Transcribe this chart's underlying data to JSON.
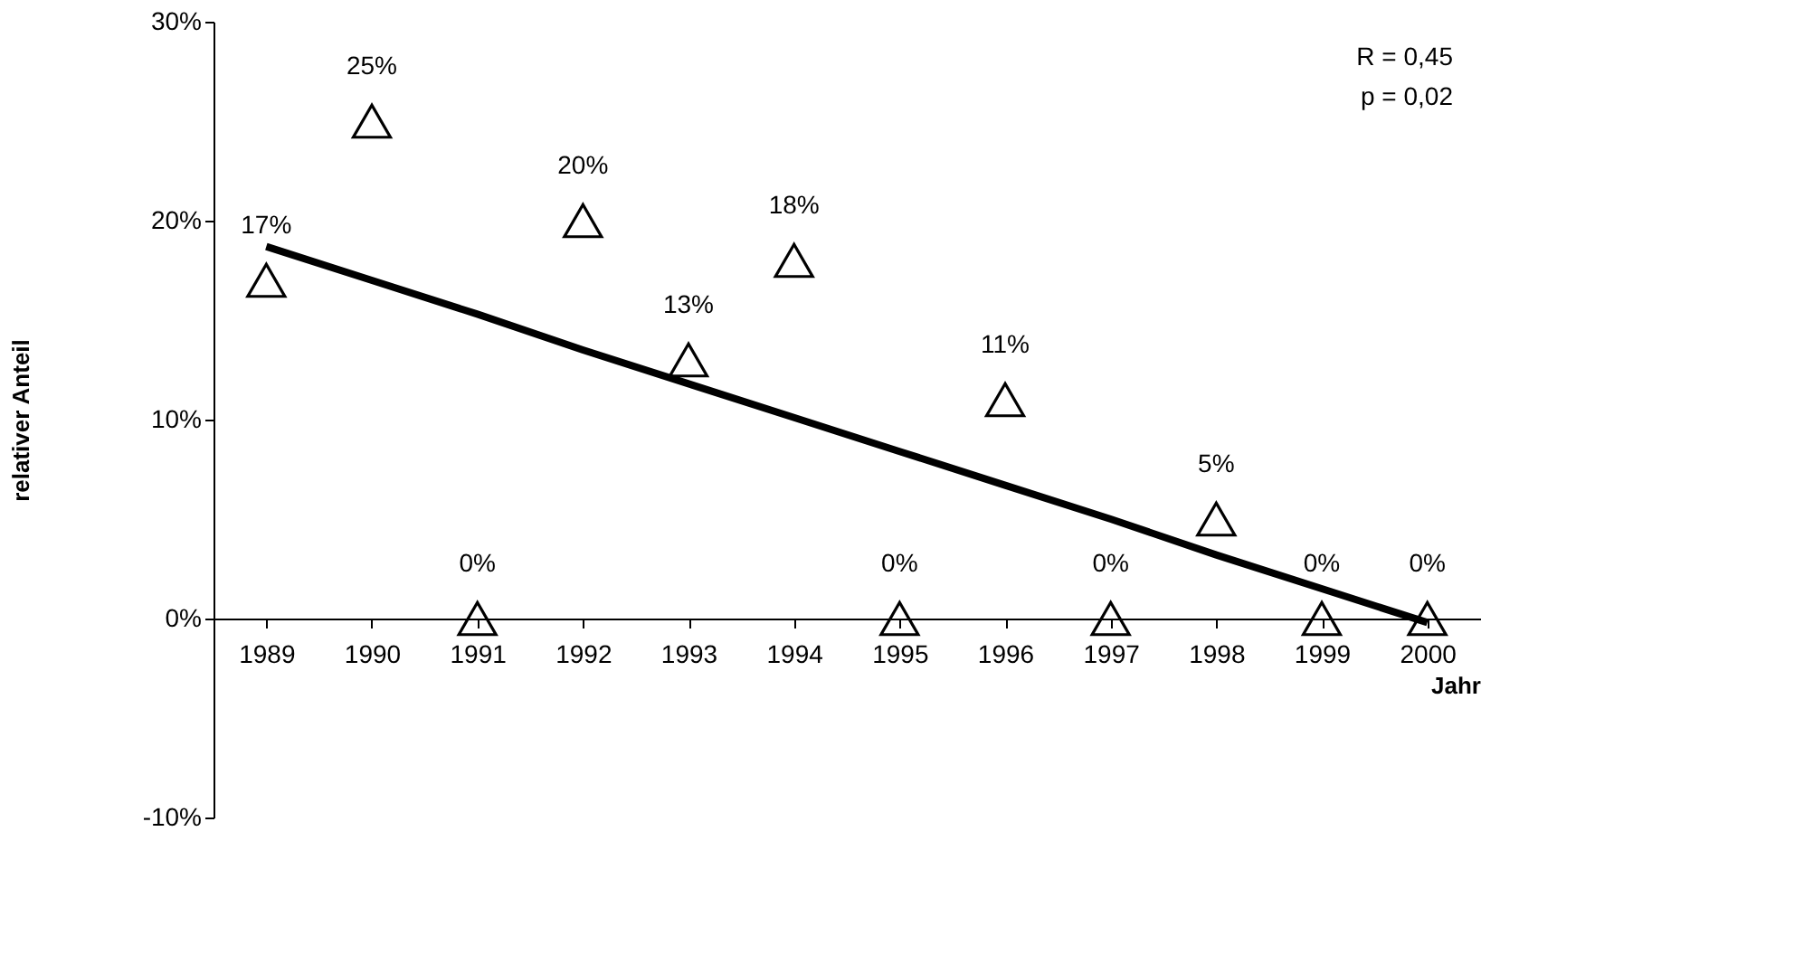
{
  "chart_data": {
    "type": "scatter",
    "categories": [
      "1989",
      "1990",
      "1991",
      "1992",
      "1993",
      "1994",
      "1995",
      "1996",
      "1997",
      "1998",
      "1999",
      "2000"
    ],
    "xlabel": "Jahr",
    "ylabel": "relativer Anteil",
    "ylim": [
      -10,
      30
    ],
    "yticks": [
      {
        "value": -10,
        "label": "-10%"
      },
      {
        "value": 0,
        "label": "0%"
      },
      {
        "value": 10,
        "label": "10%"
      },
      {
        "value": 20,
        "label": "20%"
      },
      {
        "value": 30,
        "label": "30%"
      }
    ],
    "marker": "triangle",
    "grid": false,
    "annotations": [
      "R = 0,45",
      "p = 0,02"
    ],
    "series": [
      {
        "color": "#000000",
        "values": [
          17,
          25,
          0,
          20,
          13,
          18,
          0,
          11,
          0,
          5,
          0,
          0
        ],
        "value_labels": [
          "17%",
          "25%",
          "0%",
          "20%",
          "13%",
          "18%",
          "0%",
          "11%",
          "0%",
          "5%",
          "0%",
          "0%"
        ]
      },
      {
        "type": "line",
        "marker": "none",
        "color": "#000000",
        "values": [
          18.7,
          17.0,
          15.3,
          13.5,
          11.8,
          10.1,
          8.4,
          6.7,
          5.0,
          3.2,
          1.5,
          -0.2
        ]
      }
    ]
  }
}
